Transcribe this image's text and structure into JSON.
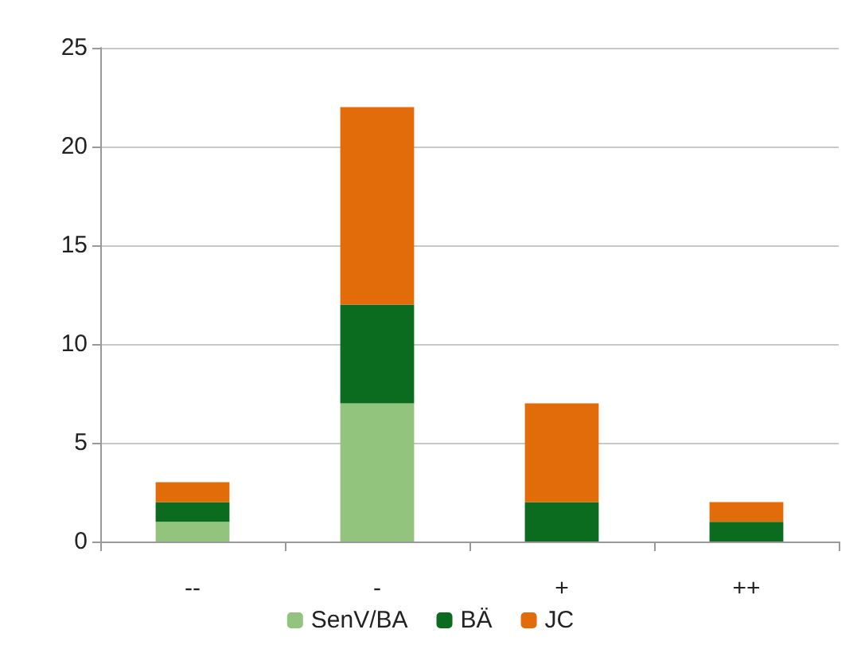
{
  "chart_data": {
    "type": "bar",
    "stacked": true,
    "categories": [
      "--",
      "-",
      "+",
      "++"
    ],
    "series": [
      {
        "name": "SenV/BA",
        "color": "#93c47d",
        "values": [
          1,
          7,
          0,
          0
        ]
      },
      {
        "name": "BÄ",
        "color": "#0b6b1e",
        "values": [
          1,
          5,
          2,
          1
        ]
      },
      {
        "name": "JC",
        "color": "#e36c0a",
        "values": [
          1,
          10,
          5,
          1
        ]
      }
    ],
    "ylim": [
      0,
      25
    ],
    "yticks": [
      0,
      5,
      10,
      15,
      20,
      25
    ],
    "grid": "y",
    "legend": "bottom"
  }
}
